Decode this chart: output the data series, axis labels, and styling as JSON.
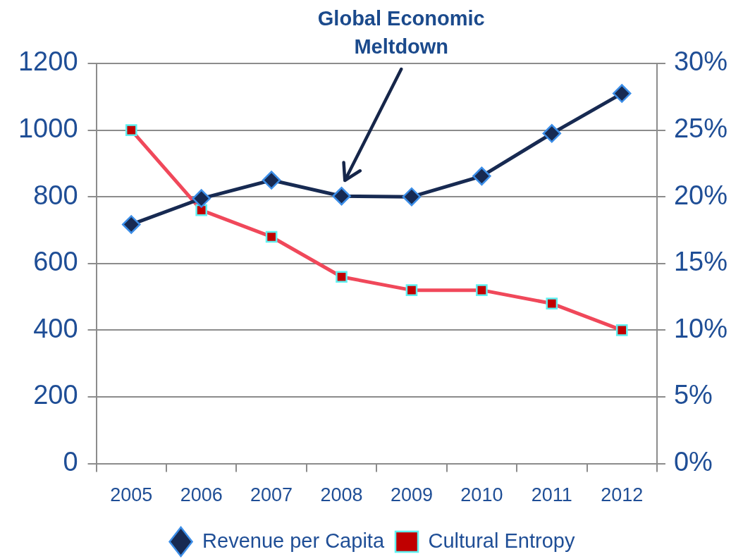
{
  "chart_data": {
    "type": "line",
    "annotations": [
      "Global Economic Meltdown"
    ],
    "categories": [
      "2005",
      "2006",
      "2007",
      "2008",
      "2009",
      "2010",
      "2011",
      "2012"
    ],
    "series": [
      {
        "name": "Revenue per Capita",
        "color": "#172a52",
        "marker": "diamond",
        "values": [
          717,
          795,
          850,
          802,
          800,
          862,
          990,
          1110
        ]
      },
      {
        "name": "Cultural Entropy",
        "color": "#f0485a",
        "marker": "square",
        "axis": "y2",
        "values": [
          25,
          19,
          17,
          14,
          13,
          13,
          12,
          10
        ]
      }
    ],
    "ylim": [
      0,
      1200
    ],
    "yticks": [
      0,
      200,
      400,
      600,
      800,
      1000,
      1200
    ],
    "y2lim": [
      0,
      30
    ],
    "y2ticks": [
      {
        "value": 0,
        "label": "0%"
      },
      {
        "value": 5,
        "label": "5%"
      },
      {
        "value": 10,
        "label": "10%"
      },
      {
        "value": 15,
        "label": "15%"
      },
      {
        "value": 20,
        "label": "20%"
      },
      {
        "value": 25,
        "label": "25%"
      },
      {
        "value": 30,
        "label": "30%"
      }
    ],
    "grid": "y",
    "legend": "bottom",
    "line_style": "solid"
  }
}
